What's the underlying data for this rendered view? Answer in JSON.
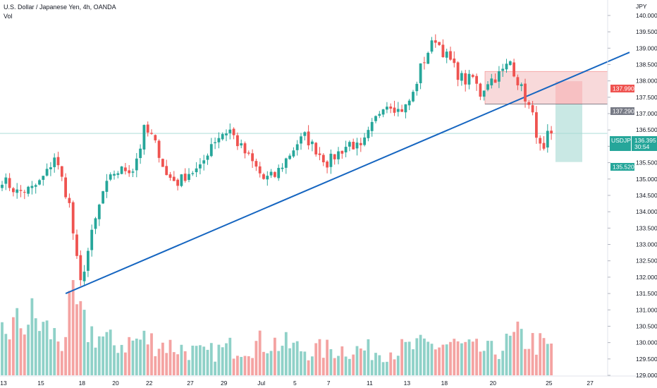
{
  "header": {
    "title": "U.S. Dollar / Japanese Yen, 4h, OANDA",
    "vol_label": "Vol"
  },
  "axis": {
    "unit": "JPY",
    "y_ticks": [
      "140.000",
      "139.500",
      "139.000",
      "138.500",
      "138.000",
      "137.500",
      "137.000",
      "136.500",
      "136.000",
      "135.500",
      "135.000",
      "134.500",
      "134.000",
      "133.500",
      "133.000",
      "132.500",
      "132.000",
      "131.500",
      "131.000",
      "130.500",
      "130.000",
      "129.500",
      "129.000"
    ],
    "x_ticks": [
      "13",
      "15",
      "18",
      "20",
      "22",
      "27",
      "29",
      "Jul",
      "5",
      "7",
      "11",
      "13",
      "18",
      "20",
      "25",
      "27"
    ]
  },
  "tags": {
    "stop_price": "137.990",
    "entry_price": "137.290",
    "symbol": "USDJPY",
    "last_price": "136.395",
    "countdown": "30:54",
    "target_price": "135.520"
  },
  "colors": {
    "up": "#26a69a",
    "down": "#ef5350",
    "trendline": "#1565c0",
    "stop_zone": "#f7a1a4",
    "target_zone": "#a5d9d2"
  },
  "chart_data": {
    "type": "candlestick",
    "symbol": "USDJPY",
    "timeframe": "4h",
    "y_unit": "JPY",
    "ylim": [
      129.0,
      140.3
    ],
    "last_price": 136.395,
    "x_tick_labels": [
      "13",
      "15",
      "18",
      "20",
      "22",
      "27",
      "29",
      "Jul",
      "5",
      "7",
      "11",
      "13",
      "18",
      "20",
      "25",
      "27"
    ],
    "price_path": [
      [
        0,
        135.0
      ],
      [
        4,
        134.6
      ],
      [
        8,
        134.7
      ],
      [
        10,
        134.9
      ],
      [
        12,
        135.2
      ],
      [
        14,
        135.7
      ],
      [
        16,
        135.0
      ],
      [
        18,
        134.2
      ],
      [
        20,
        132.5
      ],
      [
        21,
        131.8
      ],
      [
        24,
        133.3
      ],
      [
        27,
        134.6
      ],
      [
        30,
        135.2
      ],
      [
        33,
        135.3
      ],
      [
        35,
        135.3
      ],
      [
        37,
        136.0
      ],
      [
        38,
        136.5
      ],
      [
        40,
        136.3
      ],
      [
        42,
        135.8
      ],
      [
        44,
        135.1
      ],
      [
        47,
        134.9
      ],
      [
        50,
        135.2
      ],
      [
        53,
        135.3
      ],
      [
        56,
        136.1
      ],
      [
        59,
        136.4
      ],
      [
        61,
        136.5
      ],
      [
        63,
        136.1
      ],
      [
        65,
        135.8
      ],
      [
        67,
        135.5
      ],
      [
        70,
        135.0
      ],
      [
        73,
        135.1
      ],
      [
        76,
        135.6
      ],
      [
        79,
        136.1
      ],
      [
        81,
        136.3
      ],
      [
        84,
        135.9
      ],
      [
        87,
        135.5
      ],
      [
        90,
        135.8
      ],
      [
        93,
        136.1
      ],
      [
        96,
        135.9
      ],
      [
        99,
        136.6
      ],
      [
        102,
        137.3
      ],
      [
        104,
        137.3
      ],
      [
        106,
        137.1
      ],
      [
        108,
        137.2
      ],
      [
        110,
        137.6
      ],
      [
        112,
        138.4
      ],
      [
        114,
        138.9
      ],
      [
        116,
        139.3
      ],
      [
        118,
        138.9
      ],
      [
        120,
        138.6
      ],
      [
        122,
        138.2
      ],
      [
        124,
        138.0
      ],
      [
        126,
        138.1
      ],
      [
        128,
        137.6
      ],
      [
        130,
        138.0
      ],
      [
        132,
        138.1
      ],
      [
        134,
        138.3
      ],
      [
        136,
        138.6
      ],
      [
        138,
        138.0
      ],
      [
        140,
        137.5
      ],
      [
        142,
        136.9
      ],
      [
        144,
        135.95
      ],
      [
        145,
        135.8
      ],
      [
        146,
        136.3
      ],
      [
        147,
        136.2
      ]
    ],
    "volume_path": [
      [
        0,
        0.45
      ],
      [
        8,
        0.6
      ],
      [
        16,
        0.35
      ],
      [
        19,
        0.75
      ],
      [
        22,
        0.5
      ],
      [
        30,
        0.32
      ],
      [
        38,
        0.38
      ],
      [
        46,
        0.3
      ],
      [
        54,
        0.22
      ],
      [
        62,
        0.3
      ],
      [
        72,
        0.35
      ],
      [
        82,
        0.26
      ],
      [
        92,
        0.28
      ],
      [
        102,
        0.25
      ],
      [
        112,
        0.3
      ],
      [
        120,
        0.33
      ],
      [
        126,
        0.27
      ],
      [
        132,
        0.25
      ],
      [
        138,
        0.4
      ],
      [
        142,
        0.35
      ],
      [
        147,
        0.28
      ]
    ],
    "trendline": [
      {
        "bar": 17,
        "price": 131.5
      },
      {
        "bar": 148,
        "price": 137.9
      }
    ],
    "position": {
      "entry": 137.29,
      "stop": 137.99,
      "target": 135.52
    },
    "grid": false
  }
}
